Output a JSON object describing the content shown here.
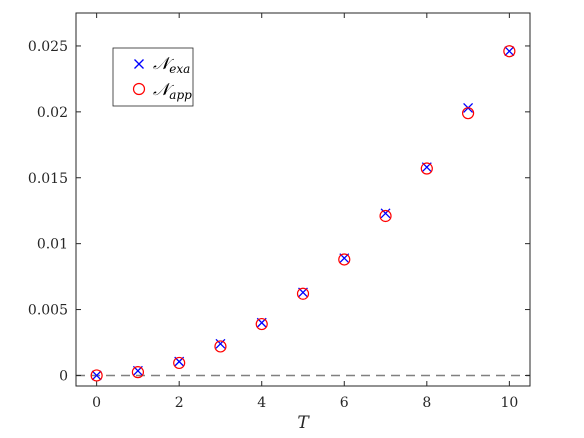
{
  "chart_data": {
    "type": "scatter",
    "xlabel": "T",
    "ylabel": "",
    "xlim": [
      -0.5,
      10.5
    ],
    "ylim": [
      -0.0008,
      0.0275
    ],
    "x_ticks": [
      0,
      2,
      4,
      6,
      8,
      10
    ],
    "y_ticks": [
      0,
      0.005,
      0.01,
      0.015,
      0.02,
      0.025
    ],
    "y_tick_labels": [
      "0",
      "0.005",
      "0.01",
      "0.015",
      "0.02",
      "0.025"
    ],
    "grid": false,
    "legend_position": "top-left",
    "reference_line": {
      "y": 0,
      "style": "dashed",
      "color": "#808080"
    },
    "series": [
      {
        "name": "N_exa",
        "legend_main": "𝒩",
        "legend_sub": "exa",
        "marker": "x",
        "color": "#0000ff",
        "x": [
          0,
          1,
          2,
          3,
          4,
          5,
          6,
          7,
          8,
          9,
          10
        ],
        "y": [
          0.0,
          0.00035,
          0.00105,
          0.0024,
          0.004,
          0.0063,
          0.0089,
          0.0123,
          0.0158,
          0.0203,
          0.0246
        ]
      },
      {
        "name": "N_app",
        "legend_main": "𝒩",
        "legend_sub": "app",
        "marker": "o",
        "color": "#ff0000",
        "x": [
          0,
          1,
          2,
          3,
          4,
          5,
          6,
          7,
          8,
          9,
          10
        ],
        "y": [
          0.0,
          0.00025,
          0.00095,
          0.0022,
          0.0039,
          0.0062,
          0.0088,
          0.0121,
          0.0157,
          0.0199,
          0.0246
        ]
      }
    ]
  }
}
